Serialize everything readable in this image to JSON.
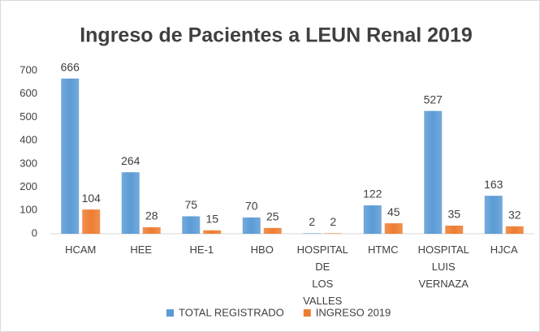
{
  "chart_data": {
    "type": "bar",
    "title": "Ingreso de Pacientes a LEUN Renal 2019",
    "categories": [
      "HCAM",
      "HEE",
      "HE-1",
      "HBO",
      "HOSPITAL DE LOS VALLES",
      "HTMC",
      "HOSPITAL LUIS VERNAZA",
      "HJCA"
    ],
    "series": [
      {
        "name": "TOTAL REGISTRADO",
        "color": "#5b9bd5",
        "values": [
          666,
          264,
          75,
          70,
          2,
          122,
          527,
          163
        ]
      },
      {
        "name": "INGRESO 2019",
        "color": "#ed7d31",
        "values": [
          104,
          28,
          15,
          25,
          2,
          45,
          35,
          32
        ]
      }
    ],
    "ylim": [
      0,
      700
    ],
    "yticks": [
      0,
      100,
      200,
      300,
      400,
      500,
      600,
      700
    ],
    "grid": false,
    "legend": "bottom"
  }
}
